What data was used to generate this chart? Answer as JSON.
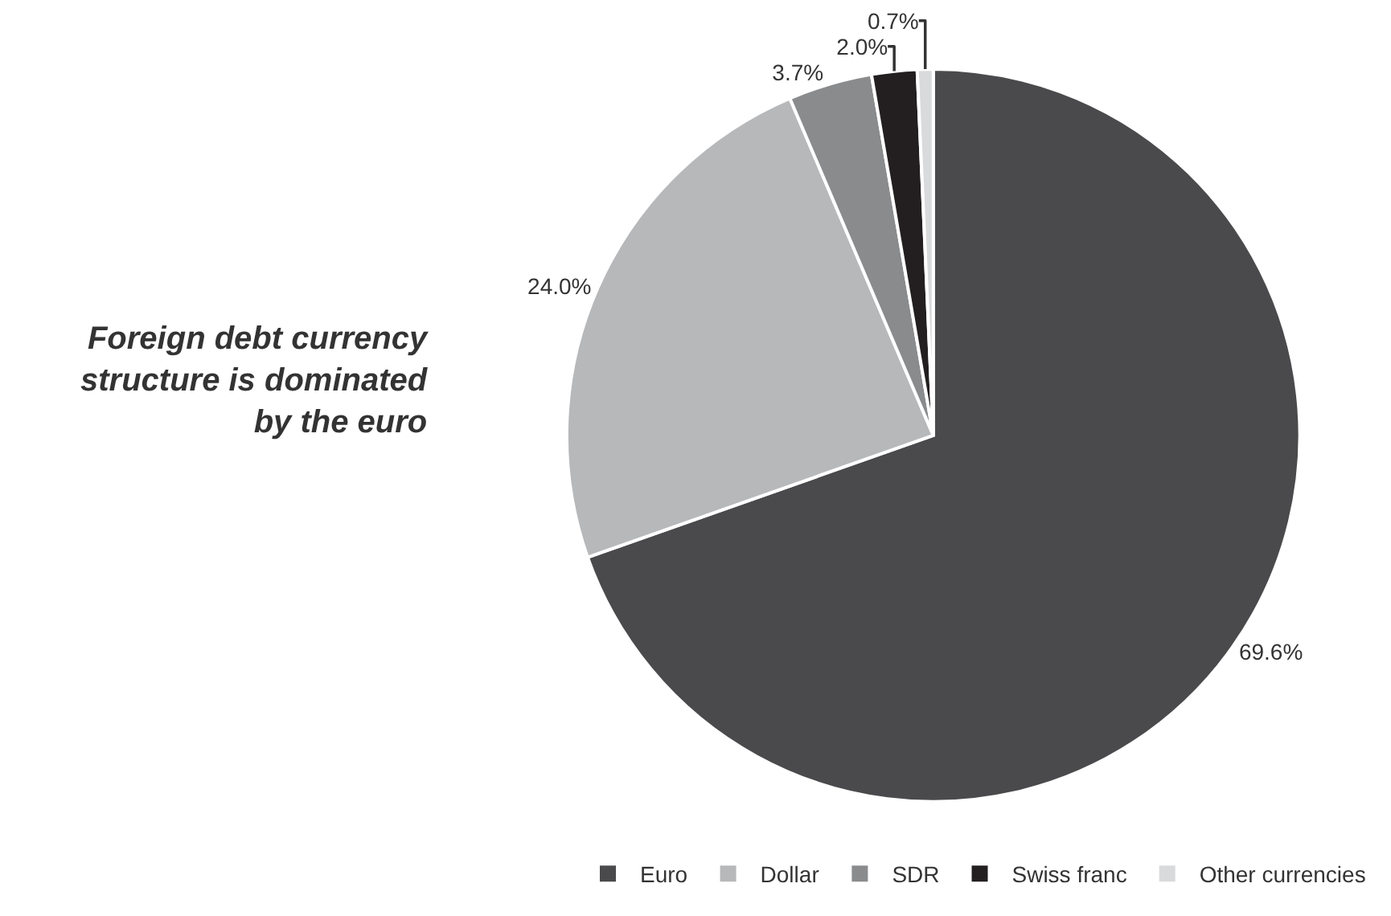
{
  "chart_data": {
    "type": "pie",
    "title": "Foreign debt currency\nstructure is dominated\nby the euro",
    "categories": [
      "Euro",
      "Dollar",
      "SDR",
      "Swiss franc",
      "Other currencies"
    ],
    "values": [
      69.6,
      24.0,
      3.7,
      2.0,
      0.7
    ],
    "colors": [
      "#4a4a4c",
      "#b7b8ba",
      "#8a8b8d",
      "#231f20",
      "#d9dadb"
    ],
    "value_labels": [
      "69.6%",
      "24.0%",
      "3.7%",
      "2.0%",
      "0.7%"
    ],
    "legend": "bottom right"
  }
}
